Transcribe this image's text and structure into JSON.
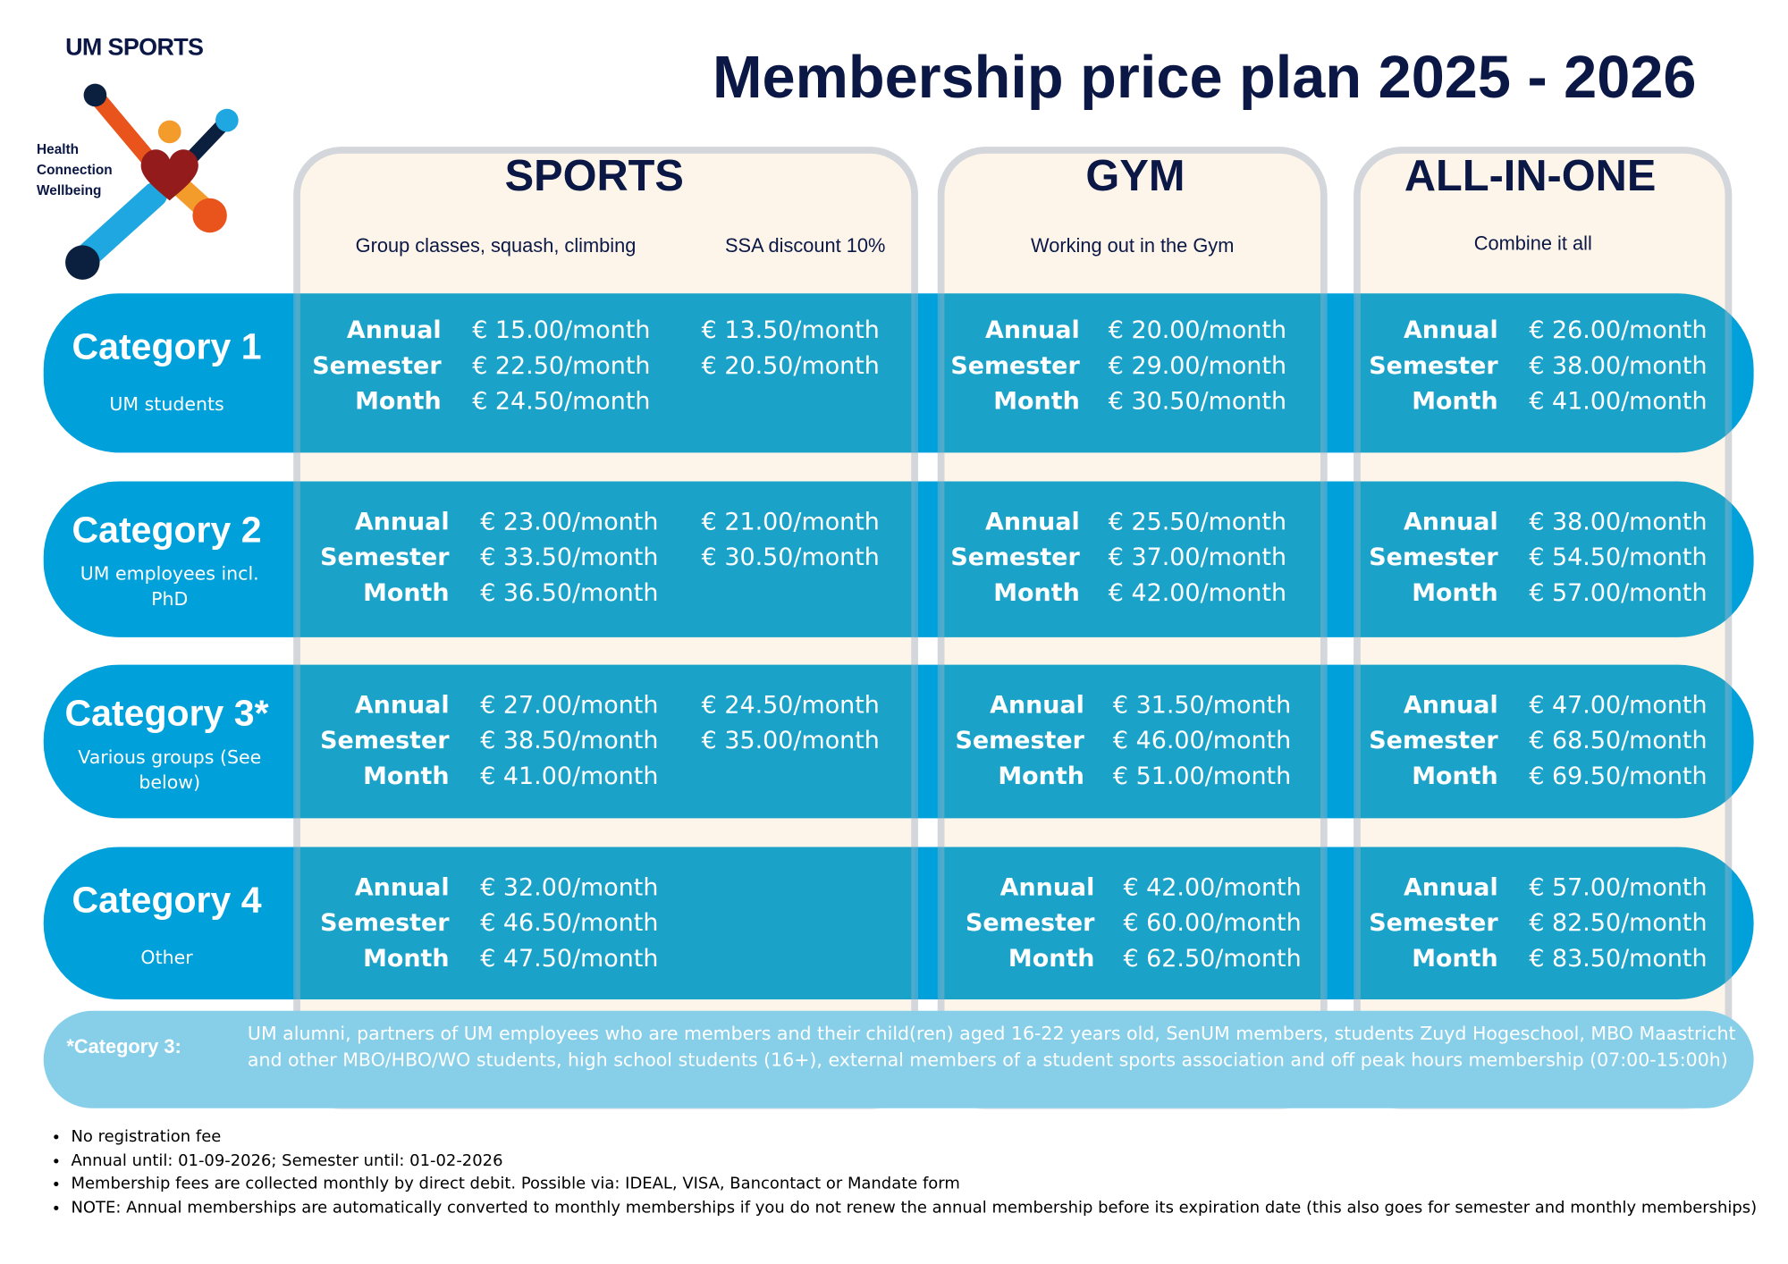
{
  "brand": {
    "name": "UM SPORTS",
    "tagline": [
      "Health",
      "Connection",
      "Wellbeing"
    ]
  },
  "title": "Membership price plan 2025 - 2026",
  "colors": {
    "navy": "#0b1845",
    "band_blue": "#00a0da",
    "panel_beige": "#fdf5ea",
    "note_blue": "#87cfe9"
  },
  "columns": [
    {
      "name": "SPORTS",
      "subtitle": "Group classes, squash, climbing",
      "subtitle2": "SSA discount 10%"
    },
    {
      "name": "GYM",
      "subtitle": "Working out in the Gym"
    },
    {
      "name": "ALL-IN-ONE",
      "subtitle": "Combine it all"
    }
  ],
  "labels": {
    "annual": "Annual",
    "semester": "Semester",
    "month": "Month"
  },
  "categories": [
    {
      "name": "Category 1",
      "subtitle": "UM students",
      "sports": [
        "€ 15.00/month",
        "€ 22.50/month",
        "€ 24.50/month"
      ],
      "ssa": [
        "€ 13.50/month",
        "€ 20.50/month"
      ],
      "gym": [
        "€ 20.00/month",
        "€ 29.00/month",
        "€ 30.50/month"
      ],
      "all": [
        "€ 26.00/month",
        "€ 38.00/month",
        "€ 41.00/month"
      ]
    },
    {
      "name": "Category 2",
      "subtitle": "UM employees incl. PhD",
      "sports": [
        "€ 23.00/month",
        "€ 33.50/month",
        "€ 36.50/month"
      ],
      "ssa": [
        "€ 21.00/month",
        "€ 30.50/month"
      ],
      "gym": [
        "€ 25.50/month",
        "€ 37.00/month",
        "€ 42.00/month"
      ],
      "all": [
        "€ 38.00/month",
        "€ 54.50/month",
        "€ 57.00/month"
      ]
    },
    {
      "name": "Category 3*",
      "subtitle": "Various groups (See below)",
      "sports": [
        "€ 27.00/month",
        "€ 38.50/month",
        "€ 41.00/month"
      ],
      "ssa": [
        "€ 24.50/month",
        "€ 35.00/month"
      ],
      "gym": [
        "€ 31.50/month",
        "€ 46.00/month",
        "€ 51.00/month"
      ],
      "all": [
        "€ 47.00/month",
        "€ 68.50/month",
        "€ 69.50/month"
      ]
    },
    {
      "name": "Category 4",
      "subtitle": "Other",
      "sports": [
        "€ 32.00/month",
        "€ 46.50/month",
        "€ 47.50/month"
      ],
      "ssa": [],
      "gym": [
        "€ 42.00/month",
        "€ 60.00/month",
        "€ 62.50/month"
      ],
      "all": [
        "€ 57.00/month",
        "€ 82.50/month",
        "€ 83.50/month"
      ]
    }
  ],
  "footnote": {
    "label": "*Category 3:",
    "text": "UM alumni, partners of UM employees who are members and their child(ren) aged 16-22 years old, SenUM members, students Zuyd Hogeschool, MBO Maastricht and other MBO/HBO/WO students, high school students (16+), external members of a student sports association and off peak hours membership (07:00-15:00h)"
  },
  "notes": [
    "No registration fee",
    "Annual until: 01-09-2026; Semester until: 01-02-2026",
    "Membership fees are collected monthly by direct debit. Possible via: IDEAL, VISA, Bancontact or Mandate form",
    "NOTE: Annual memberships are automatically converted to monthly memberships if you do not renew the annual membership before its expiration date (this also goes for semester and monthly memberships)"
  ]
}
